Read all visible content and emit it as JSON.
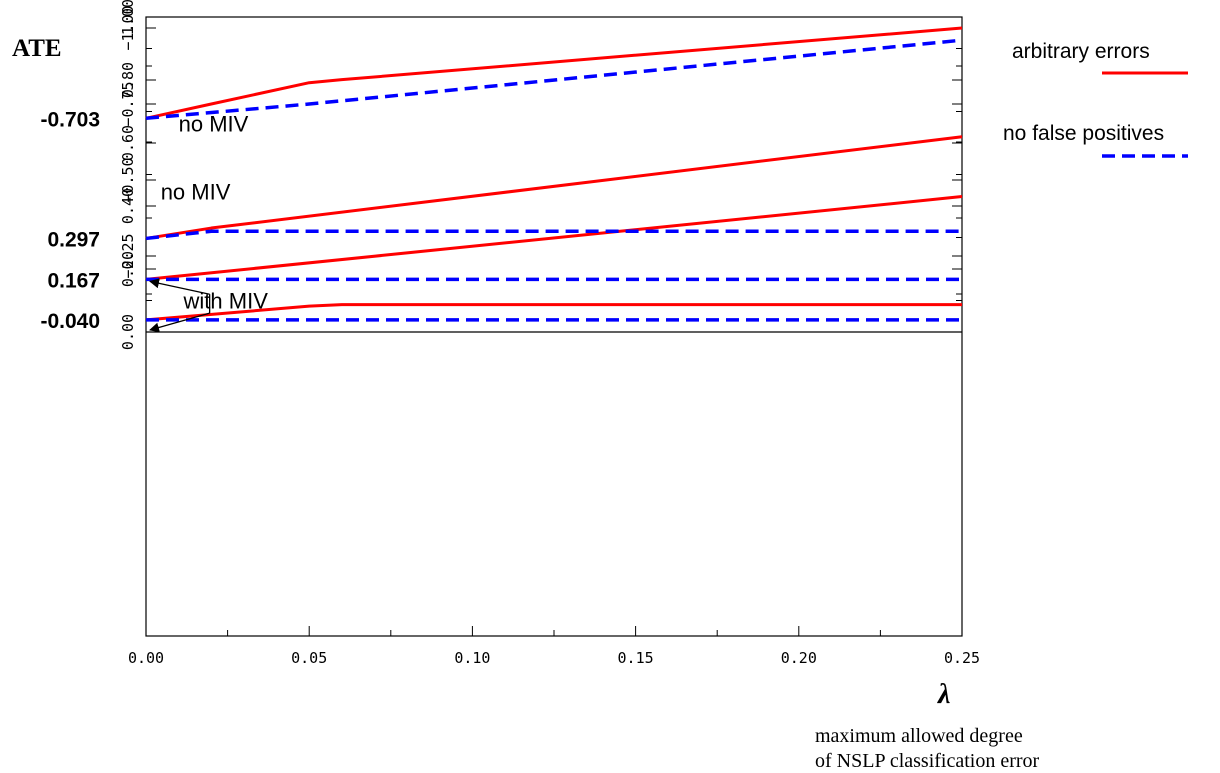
{
  "chart_data": {
    "type": "line",
    "ylabel": "ATE",
    "xlabel_symbol": "λ",
    "xlabel_line1": "maximum allowed degree",
    "xlabel_line2": "of NSLP classification error",
    "xlim": [
      0,
      0.25
    ],
    "ylim": [
      -1.0,
      1.0
    ],
    "x_ticks": [
      0.0,
      0.05,
      0.1,
      0.15,
      0.2,
      0.25
    ],
    "x_tick_labels": [
      "0.00",
      "0.05",
      "0.10",
      "0.15",
      "0.20",
      "0.25"
    ],
    "y_ticks": [
      -1.0,
      -0.75,
      -0.5,
      -0.25,
      0.0,
      0.2,
      0.4,
      0.6,
      0.8,
      1.0
    ],
    "y_tick_labels": [
      "−1.00",
      "−0.75",
      "−0.50",
      "−0.25",
      "0.00",
      "0.20",
      "0.40",
      "0.60",
      "0.80",
      "1.00"
    ],
    "highlight_values": [
      {
        "value": 0.297,
        "label": "0.297"
      },
      {
        "value": 0.167,
        "label": "0.167"
      },
      {
        "value": -0.04,
        "label": "-0.040"
      },
      {
        "value": -0.703,
        "label": "-0.703"
      }
    ],
    "series": [
      {
        "name": "arbitrary errors",
        "style": "solid",
        "color": "#ff0000",
        "x": [
          0,
          0.02,
          0.25
        ],
        "y": [
          0.297,
          0.33,
          0.62
        ]
      },
      {
        "name": "arbitrary errors",
        "style": "solid",
        "color": "#ff0000",
        "x": [
          0,
          0.25
        ],
        "y": [
          0.167,
          0.43
        ]
      },
      {
        "name": "arbitrary errors",
        "style": "solid",
        "color": "#ff0000",
        "x": [
          0,
          0.05,
          0.06,
          0.25
        ],
        "y": [
          -0.04,
          -0.085,
          -0.09,
          -0.09
        ]
      },
      {
        "name": "arbitrary errors",
        "style": "solid",
        "color": "#ff0000",
        "x": [
          0,
          0.02,
          0.05,
          0.06,
          0.25
        ],
        "y": [
          -0.703,
          -0.75,
          -0.82,
          -0.83,
          -1.0
        ]
      },
      {
        "name": "no false positives",
        "style": "dashed",
        "color": "#0000ff",
        "x": [
          0,
          0.02,
          0.25
        ],
        "y": [
          0.297,
          0.32,
          0.32
        ]
      },
      {
        "name": "no false positives",
        "style": "dashed",
        "color": "#0000ff",
        "x": [
          0,
          0.25
        ],
        "y": [
          0.167,
          0.167
        ]
      },
      {
        "name": "no false positives",
        "style": "dashed",
        "color": "#0000ff",
        "x": [
          0,
          0.25
        ],
        "y": [
          -0.04,
          -0.04
        ]
      },
      {
        "name": "no false positives",
        "style": "dashed",
        "color": "#0000ff",
        "x": [
          0,
          0.05,
          0.25
        ],
        "y": [
          -0.703,
          -0.75,
          -0.96
        ]
      }
    ],
    "zero_line": 0.0,
    "annotations": [
      {
        "text": "no MIV",
        "x": 0.0045,
        "y": 0.42
      },
      {
        "text": "with MIV",
        "x": 0.0115,
        "y": 0.075
      },
      {
        "text": "no MIV",
        "x": 0.01,
        "y": -0.66
      }
    ],
    "arrow_targets": [
      {
        "x": 0.0,
        "y": 0.167
      },
      {
        "x": 0.0,
        "y": 0.0
      }
    ],
    "legend": {
      "placement": "top-right",
      "entries": [
        {
          "label": "arbitrary errors",
          "color": "#ff0000",
          "style": "solid"
        },
        {
          "label": "no false positives",
          "color": "#0000ff",
          "style": "dashed"
        }
      ]
    },
    "grid": false
  }
}
